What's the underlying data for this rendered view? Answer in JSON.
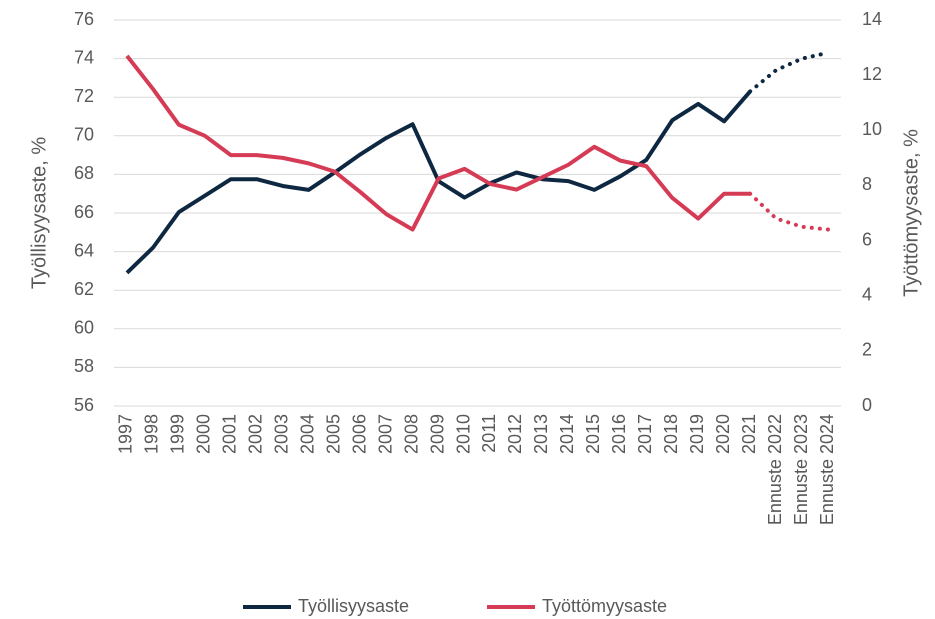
{
  "chart_data": {
    "type": "line",
    "categories": [
      "1997",
      "1998",
      "1999",
      "2000",
      "2001",
      "2002",
      "2003",
      "2004",
      "2005",
      "2006",
      "2007",
      "2008",
      "2009",
      "2010",
      "2011",
      "2012",
      "2013",
      "2014",
      "2015",
      "2016",
      "2017",
      "2018",
      "2019",
      "2020",
      "2021",
      "Ennuste 2022",
      "Ennuste 2023",
      "Ennuste 2024"
    ],
    "series": [
      {
        "name": "Työllisyysaste",
        "color": "#0e2841",
        "values": [
          62.9,
          64.2,
          66.05,
          66.9,
          67.75,
          67.75,
          67.4,
          67.2,
          68.1,
          69.05,
          69.9,
          70.6,
          67.65,
          66.8,
          67.55,
          68.1,
          67.75,
          67.65,
          67.2,
          67.9,
          68.75,
          70.8,
          71.65,
          70.75,
          72.3,
          73.4,
          74.0,
          74.3
        ]
      },
      {
        "name": "Työttömyysaste",
        "color": "#d63b56",
        "axis": "y2",
        "values": [
          12.7,
          11.5,
          10.2,
          9.8,
          9.1,
          9.1,
          9.0,
          8.8,
          8.5,
          7.75,
          6.95,
          6.4,
          8.25,
          8.6,
          8.05,
          7.85,
          8.3,
          8.75,
          9.4,
          8.9,
          8.7,
          7.55,
          6.8,
          7.7,
          7.7,
          6.8,
          6.5,
          6.4
        ]
      }
    ],
    "ylabel": "Työllisyysaste, %",
    "y2label": "Työttömyysaste, %",
    "ylim": [
      56,
      76
    ],
    "yticks": [
      56,
      58,
      60,
      62,
      64,
      66,
      68,
      70,
      72,
      74,
      76
    ],
    "y2lim": [
      0,
      14
    ],
    "y2ticks": [
      0,
      2,
      4,
      6,
      8,
      10,
      12,
      14
    ],
    "grid": true,
    "legend": "bottom",
    "dotted_from": "Ennuste 2022"
  }
}
